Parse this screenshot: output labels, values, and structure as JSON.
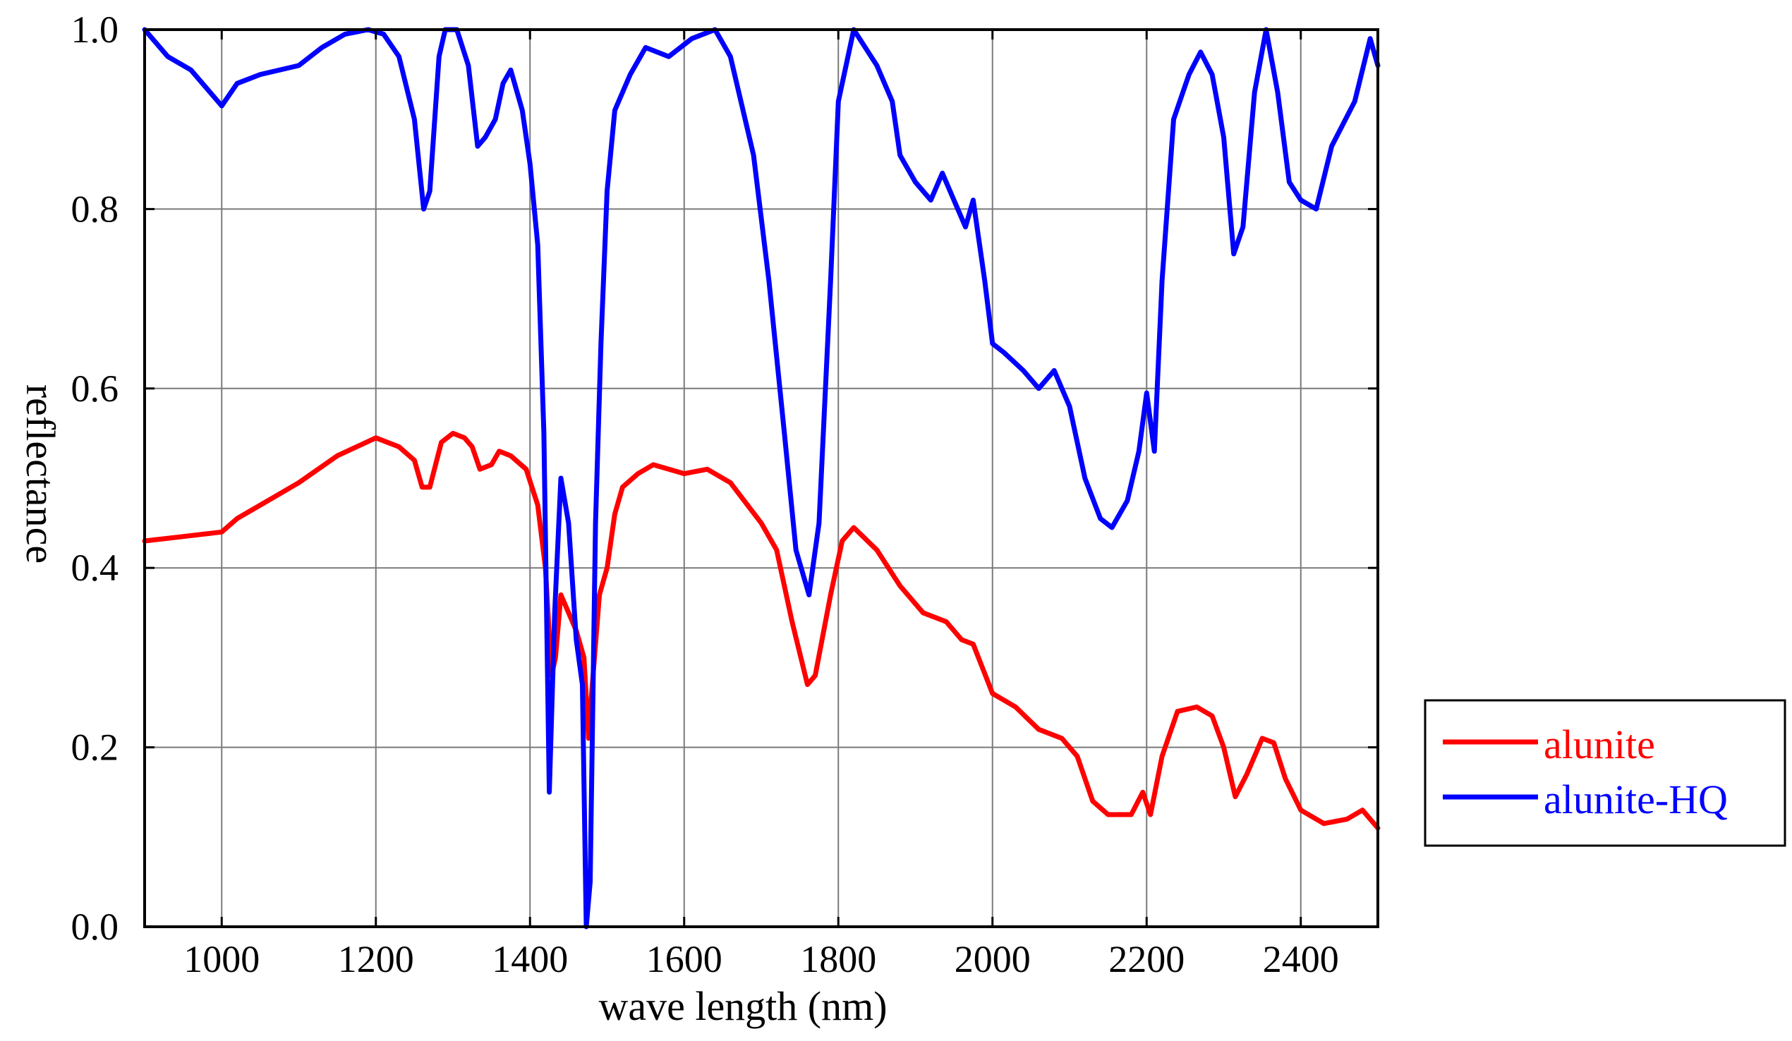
{
  "chart_data": {
    "type": "line",
    "xlabel": "wave length (nm)",
    "ylabel": "reflectance",
    "xlim": [
      900,
      2500
    ],
    "ylim": [
      0.0,
      1.0
    ],
    "grid": true,
    "x_ticks": [
      1000,
      1200,
      1400,
      1600,
      1800,
      2000,
      2200,
      2400
    ],
    "x_tick_labels": [
      "1000",
      "1200",
      "1400",
      "1600",
      "1800",
      "2000",
      "2200",
      "2400"
    ],
    "y_ticks": [
      0.0,
      0.2,
      0.4,
      0.6,
      0.8,
      1.0
    ],
    "y_tick_labels": [
      "0.0",
      "0.2",
      "0.4",
      "0.6",
      "0.8",
      "1.0"
    ],
    "legend_position": "right, outside plot area",
    "series": [
      {
        "name": "alunite",
        "color": "#ff0000",
        "points": [
          [
            900,
            0.43
          ],
          [
            950,
            0.435
          ],
          [
            1000,
            0.44
          ],
          [
            1020,
            0.455
          ],
          [
            1050,
            0.47
          ],
          [
            1100,
            0.495
          ],
          [
            1150,
            0.525
          ],
          [
            1200,
            0.545
          ],
          [
            1230,
            0.535
          ],
          [
            1250,
            0.52
          ],
          [
            1260,
            0.49
          ],
          [
            1270,
            0.49
          ],
          [
            1285,
            0.54
          ],
          [
            1300,
            0.55
          ],
          [
            1315,
            0.545
          ],
          [
            1325,
            0.535
          ],
          [
            1335,
            0.51
          ],
          [
            1350,
            0.515
          ],
          [
            1360,
            0.53
          ],
          [
            1375,
            0.525
          ],
          [
            1395,
            0.51
          ],
          [
            1410,
            0.47
          ],
          [
            1420,
            0.4
          ],
          [
            1428,
            0.28
          ],
          [
            1433,
            0.3
          ],
          [
            1440,
            0.37
          ],
          [
            1450,
            0.35
          ],
          [
            1460,
            0.33
          ],
          [
            1470,
            0.3
          ],
          [
            1476,
            0.21
          ],
          [
            1480,
            0.26
          ],
          [
            1490,
            0.37
          ],
          [
            1500,
            0.4
          ],
          [
            1510,
            0.46
          ],
          [
            1520,
            0.49
          ],
          [
            1540,
            0.505
          ],
          [
            1560,
            0.515
          ],
          [
            1600,
            0.505
          ],
          [
            1630,
            0.51
          ],
          [
            1660,
            0.495
          ],
          [
            1700,
            0.45
          ],
          [
            1720,
            0.42
          ],
          [
            1740,
            0.34
          ],
          [
            1760,
            0.27
          ],
          [
            1770,
            0.28
          ],
          [
            1790,
            0.37
          ],
          [
            1805,
            0.43
          ],
          [
            1820,
            0.445
          ],
          [
            1850,
            0.42
          ],
          [
            1880,
            0.38
          ],
          [
            1910,
            0.35
          ],
          [
            1940,
            0.34
          ],
          [
            1960,
            0.32
          ],
          [
            1975,
            0.315
          ],
          [
            2000,
            0.26
          ],
          [
            2030,
            0.245
          ],
          [
            2060,
            0.22
          ],
          [
            2090,
            0.21
          ],
          [
            2110,
            0.19
          ],
          [
            2130,
            0.14
          ],
          [
            2150,
            0.125
          ],
          [
            2180,
            0.125
          ],
          [
            2195,
            0.15
          ],
          [
            2205,
            0.125
          ],
          [
            2220,
            0.19
          ],
          [
            2240,
            0.24
          ],
          [
            2265,
            0.245
          ],
          [
            2285,
            0.235
          ],
          [
            2300,
            0.2
          ],
          [
            2315,
            0.145
          ],
          [
            2330,
            0.17
          ],
          [
            2350,
            0.21
          ],
          [
            2365,
            0.205
          ],
          [
            2380,
            0.165
          ],
          [
            2400,
            0.13
          ],
          [
            2430,
            0.115
          ],
          [
            2460,
            0.12
          ],
          [
            2480,
            0.13
          ],
          [
            2500,
            0.11
          ]
        ]
      },
      {
        "name": "alunite-HQ",
        "color": "#0000ff",
        "points": [
          [
            900,
            1.0
          ],
          [
            930,
            0.97
          ],
          [
            960,
            0.955
          ],
          [
            985,
            0.93
          ],
          [
            1000,
            0.915
          ],
          [
            1020,
            0.94
          ],
          [
            1050,
            0.95
          ],
          [
            1100,
            0.96
          ],
          [
            1130,
            0.98
          ],
          [
            1160,
            0.995
          ],
          [
            1190,
            1.0
          ],
          [
            1210,
            0.995
          ],
          [
            1230,
            0.97
          ],
          [
            1250,
            0.9
          ],
          [
            1262,
            0.8
          ],
          [
            1270,
            0.82
          ],
          [
            1282,
            0.97
          ],
          [
            1290,
            1.0
          ],
          [
            1305,
            1.0
          ],
          [
            1320,
            0.96
          ],
          [
            1332,
            0.87
          ],
          [
            1342,
            0.88
          ],
          [
            1355,
            0.9
          ],
          [
            1365,
            0.94
          ],
          [
            1375,
            0.955
          ],
          [
            1390,
            0.91
          ],
          [
            1400,
            0.85
          ],
          [
            1410,
            0.76
          ],
          [
            1418,
            0.55
          ],
          [
            1425,
            0.15
          ],
          [
            1432,
            0.35
          ],
          [
            1440,
            0.5
          ],
          [
            1450,
            0.45
          ],
          [
            1460,
            0.32
          ],
          [
            1468,
            0.27
          ],
          [
            1473,
            0.0
          ],
          [
            1478,
            0.05
          ],
          [
            1485,
            0.45
          ],
          [
            1492,
            0.65
          ],
          [
            1500,
            0.82
          ],
          [
            1510,
            0.91
          ],
          [
            1530,
            0.95
          ],
          [
            1550,
            0.98
          ],
          [
            1580,
            0.97
          ],
          [
            1610,
            0.99
          ],
          [
            1640,
            1.0
          ],
          [
            1660,
            0.97
          ],
          [
            1690,
            0.86
          ],
          [
            1710,
            0.72
          ],
          [
            1730,
            0.55
          ],
          [
            1745,
            0.42
          ],
          [
            1762,
            0.37
          ],
          [
            1775,
            0.45
          ],
          [
            1790,
            0.72
          ],
          [
            1800,
            0.92
          ],
          [
            1820,
            1.0
          ],
          [
            1850,
            0.96
          ],
          [
            1870,
            0.92
          ],
          [
            1880,
            0.86
          ],
          [
            1900,
            0.83
          ],
          [
            1920,
            0.81
          ],
          [
            1935,
            0.84
          ],
          [
            1950,
            0.81
          ],
          [
            1965,
            0.78
          ],
          [
            1975,
            0.81
          ],
          [
            1990,
            0.72
          ],
          [
            2000,
            0.65
          ],
          [
            2015,
            0.64
          ],
          [
            2040,
            0.62
          ],
          [
            2060,
            0.6
          ],
          [
            2080,
            0.62
          ],
          [
            2100,
            0.58
          ],
          [
            2120,
            0.5
          ],
          [
            2140,
            0.455
          ],
          [
            2155,
            0.445
          ],
          [
            2175,
            0.475
          ],
          [
            2190,
            0.53
          ],
          [
            2200,
            0.595
          ],
          [
            2210,
            0.53
          ],
          [
            2220,
            0.72
          ],
          [
            2235,
            0.9
          ],
          [
            2255,
            0.95
          ],
          [
            2270,
            0.975
          ],
          [
            2285,
            0.95
          ],
          [
            2300,
            0.88
          ],
          [
            2313,
            0.75
          ],
          [
            2325,
            0.78
          ],
          [
            2340,
            0.93
          ],
          [
            2355,
            1.0
          ],
          [
            2370,
            0.93
          ],
          [
            2385,
            0.83
          ],
          [
            2400,
            0.81
          ],
          [
            2420,
            0.8
          ],
          [
            2440,
            0.87
          ],
          [
            2470,
            0.92
          ],
          [
            2490,
            0.99
          ],
          [
            2500,
            0.96
          ]
        ]
      }
    ]
  }
}
